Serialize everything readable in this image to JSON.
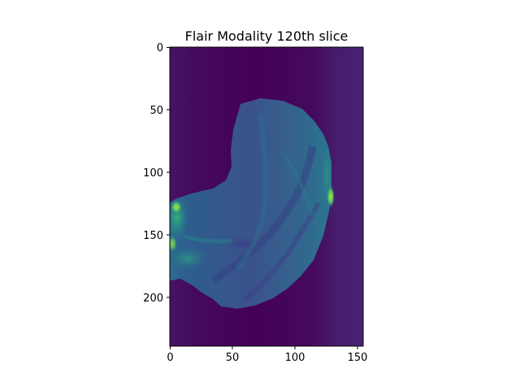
{
  "title": "Flair Modality 120th slice",
  "image": {
    "rows": 240,
    "cols": 155,
    "colormap": "viridis"
  },
  "axes": {
    "x_ticks": [
      0,
      50,
      100,
      150
    ],
    "y_ticks": [
      0,
      50,
      100,
      150,
      200
    ]
  },
  "colors": {
    "background_dark": "#440154",
    "background_right": "#46226f",
    "brain_tissue": "#3b528b",
    "bright_region": "#5ec962",
    "edge_highlight": "#2a788e"
  }
}
